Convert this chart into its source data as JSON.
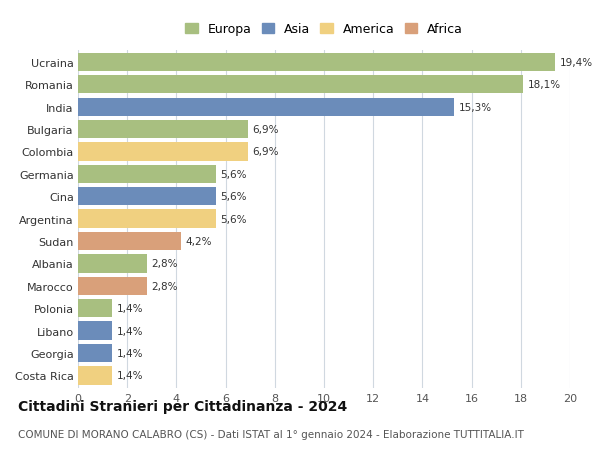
{
  "categories": [
    "Costa Rica",
    "Georgia",
    "Libano",
    "Polonia",
    "Marocco",
    "Albania",
    "Sudan",
    "Argentina",
    "Cina",
    "Germania",
    "Colombia",
    "Bulgaria",
    "India",
    "Romania",
    "Ucraina"
  ],
  "values": [
    1.4,
    1.4,
    1.4,
    1.4,
    2.8,
    2.8,
    4.2,
    5.6,
    5.6,
    5.6,
    6.9,
    6.9,
    15.3,
    18.1,
    19.4
  ],
  "colors": [
    "#f0d080",
    "#6b8cba",
    "#6b8cba",
    "#a8bf80",
    "#d9a07a",
    "#a8bf80",
    "#d9a07a",
    "#f0d080",
    "#6b8cba",
    "#a8bf80",
    "#f0d080",
    "#a8bf80",
    "#6b8cba",
    "#a8bf80",
    "#a8bf80"
  ],
  "labels": [
    "1,4%",
    "1,4%",
    "1,4%",
    "1,4%",
    "2,8%",
    "2,8%",
    "4,2%",
    "5,6%",
    "5,6%",
    "5,6%",
    "6,9%",
    "6,9%",
    "15,3%",
    "18,1%",
    "19,4%"
  ],
  "legend_labels": [
    "Europa",
    "Asia",
    "America",
    "Africa"
  ],
  "legend_colors": [
    "#a8bf80",
    "#6b8cba",
    "#f0d080",
    "#d9a07a"
  ],
  "title": "Cittadini Stranieri per Cittadinanza - 2024",
  "subtitle": "COMUNE DI MORANO CALABRO (CS) - Dati ISTAT al 1° gennaio 2024 - Elaborazione TUTTITALIA.IT",
  "xlim": [
    0,
    20
  ],
  "xticks": [
    0,
    2,
    4,
    6,
    8,
    10,
    12,
    14,
    16,
    18,
    20
  ],
  "background_color": "#ffffff",
  "grid_color": "#d0d8e0",
  "bar_height": 0.82,
  "title_fontsize": 10,
  "subtitle_fontsize": 7.5,
  "label_fontsize": 7.5,
  "tick_fontsize": 8,
  "legend_fontsize": 9
}
